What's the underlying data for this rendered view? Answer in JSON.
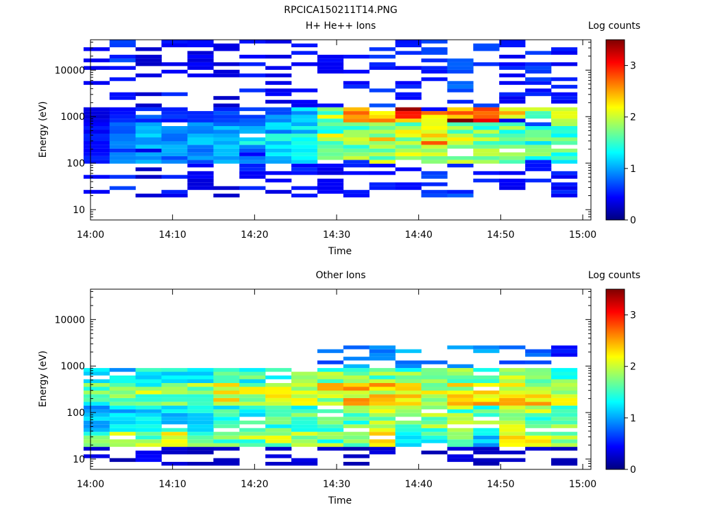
{
  "figure": {
    "title": "RPCICA150211T14.PNG"
  },
  "colormap": [
    "#00007f",
    "#0000ff",
    "#0080ff",
    "#00ffff",
    "#80ff80",
    "#ffff00",
    "#ff8000",
    "#ff0000",
    "#7f0000"
  ],
  "chart_data": [
    {
      "type": "heatmap",
      "title": "H+ He++ Ions",
      "xlabel": "Time",
      "ylabel": "Energy (eV)",
      "y_scale": "log",
      "ylim": [
        6,
        45000
      ],
      "xlim": [
        "14:00",
        "15:01"
      ],
      "x_ticks": [
        "14:00",
        "14:10",
        "14:20",
        "14:30",
        "14:40",
        "14:50",
        "15:00"
      ],
      "y_ticks": [
        10,
        100,
        1000,
        10000
      ],
      "y_tick_labels": [
        "10",
        "100",
        "1000",
        "10000"
      ],
      "colorbar": {
        "label": "Log counts",
        "range": [
          0,
          3.5
        ],
        "ticks": [
          "0",
          "1",
          "2",
          "3"
        ]
      },
      "time_bins": [
        "14:00:45",
        "14:03:55",
        "14:07:05",
        "14:10:15",
        "14:13:25",
        "14:16:35",
        "14:19:45",
        "14:22:55",
        "14:26:05",
        "14:29:15",
        "14:32:25",
        "14:35:35",
        "14:38:45",
        "14:41:55",
        "14:45:05",
        "14:48:15",
        "14:51:25",
        "14:54:35",
        "14:57:45"
      ],
      "bands": [
        {
          "e": [
            20,
            45000
          ],
          "v": [
            0.4,
            0.6,
            0.3,
            0.5,
            0.4,
            0.3,
            0.5,
            0.4,
            0.5,
            0.4,
            0.5,
            0.6,
            0.5,
            0.6,
            0.7,
            0.6,
            0.5,
            0.6,
            0.5
          ],
          "style": "sparse"
        },
        {
          "e": [
            100,
            800
          ],
          "v": [
            0.5,
            0.8,
            1.0,
            0.9,
            0.9,
            1.0,
            0.9,
            1.1,
            1.3,
            1.6,
            1.8,
            1.9,
            1.9,
            1.9,
            1.9,
            1.8,
            1.7,
            1.6,
            1.6
          ],
          "style": "dense"
        },
        {
          "e": [
            800,
            1600
          ],
          "v": [
            0.4,
            0.6,
            0.7,
            0.6,
            0.6,
            0.7,
            0.7,
            0.9,
            1.1,
            1.9,
            2.6,
            2.4,
            2.9,
            2.8,
            3.0,
            2.8,
            2.3,
            2.0,
            1.8
          ],
          "style": "dense"
        },
        {
          "e": [
            250,
            450
          ],
          "v": [
            0.5,
            0.8,
            1.0,
            0.9,
            1.0,
            1.1,
            1.2,
            1.4,
            1.2,
            2.4,
            1.9,
            2.1,
            2.0,
            2.4,
            2.1,
            1.8,
            1.6,
            1.5,
            1.5
          ],
          "style": "dense"
        }
      ]
    },
    {
      "type": "heatmap",
      "title": "Other Ions",
      "xlabel": "Time",
      "ylabel": "Energy (eV)",
      "y_scale": "log",
      "ylim": [
        6,
        45000
      ],
      "xlim": [
        "14:00",
        "15:01"
      ],
      "x_ticks": [
        "14:00",
        "14:10",
        "14:20",
        "14:30",
        "14:40",
        "14:50",
        "15:00"
      ],
      "y_ticks": [
        10,
        100,
        1000,
        10000
      ],
      "y_tick_labels": [
        "10",
        "100",
        "1000",
        "10000"
      ],
      "colorbar": {
        "label": "Log counts",
        "range": [
          0,
          3.5
        ],
        "ticks": [
          "0",
          "1",
          "2",
          "3"
        ]
      },
      "time_bins": [
        "14:00:45",
        "14:03:55",
        "14:07:05",
        "14:10:15",
        "14:13:25",
        "14:16:35",
        "14:19:45",
        "14:22:55",
        "14:26:05",
        "14:29:15",
        "14:32:25",
        "14:35:35",
        "14:38:45",
        "14:41:55",
        "14:45:05",
        "14:48:15",
        "14:51:25",
        "14:54:35",
        "14:57:45"
      ],
      "bands": [
        {
          "e": [
            40,
            900
          ],
          "v": [
            1.1,
            1.2,
            1.3,
            1.3,
            1.4,
            1.5,
            1.5,
            1.5,
            1.6,
            1.7,
            1.7,
            1.8,
            1.7,
            1.8,
            1.8,
            1.7,
            1.8,
            1.8,
            1.7
          ],
          "style": "dense"
        },
        {
          "e": [
            150,
            400
          ],
          "v": [
            1.6,
            1.7,
            1.8,
            1.8,
            1.9,
            2.0,
            1.9,
            2.0,
            2.0,
            2.1,
            2.2,
            2.2,
            2.1,
            2.1,
            2.2,
            2.2,
            2.2,
            2.2,
            2.1
          ],
          "style": "dense"
        },
        {
          "e": [
            20,
            40
          ],
          "v": [
            1.8,
            1.9,
            1.9,
            2.0,
            1.8,
            1.7,
            1.8,
            1.9,
            1.8,
            1.7,
            1.6,
            2.0,
            1.5,
            1.4,
            1.6,
            1.2,
            2.0,
            2.1,
            1.7
          ],
          "style": "dense"
        },
        {
          "e": [
            900,
            3000
          ],
          "v": [
            0,
            0,
            0,
            0,
            0,
            0,
            0,
            0,
            0,
            0.8,
            0.9,
            0.8,
            1.0,
            0.9,
            1.0,
            0.9,
            0.8,
            0.7,
            0.5
          ],
          "style": "sparse"
        },
        {
          "e": [
            7,
            20
          ],
          "v": [
            0.3,
            0.2,
            0.4,
            0.3,
            0.2,
            0.2,
            0.3,
            0.3,
            0.3,
            0.3,
            0.2,
            0.3,
            0.3,
            0.2,
            0.3,
            0.2,
            0.3,
            0.3,
            0.2
          ],
          "style": "sparse"
        }
      ]
    }
  ]
}
